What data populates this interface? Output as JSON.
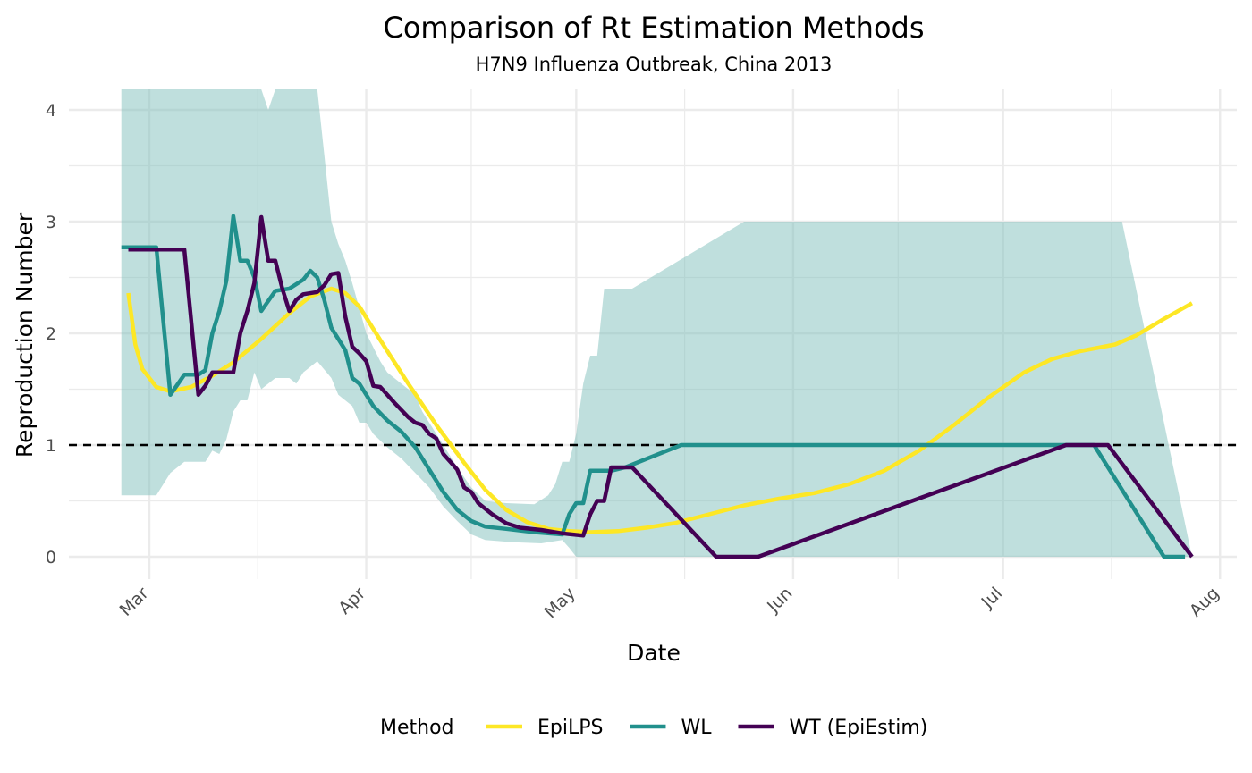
{
  "chart_data": {
    "type": "line",
    "title": "Comparison of Rt Estimation Methods",
    "subtitle": "H7N9 Influenza Outbreak, China 2013",
    "xlabel": "Date",
    "ylabel": "Reproduction Number",
    "x_axis": {
      "type": "date",
      "range": [
        "2013-02-20",
        "2013-08-01"
      ],
      "ticks": [
        {
          "date": "2013-03-01",
          "label": "Mar"
        },
        {
          "date": "2013-04-01",
          "label": "Apr"
        },
        {
          "date": "2013-05-01",
          "label": "May"
        },
        {
          "date": "2013-06-01",
          "label": "Jun"
        },
        {
          "date": "2013-07-01",
          "label": "Jul"
        },
        {
          "date": "2013-08-01",
          "label": "Aug"
        }
      ],
      "tick_label_rotation_deg": -45
    },
    "y_axis": {
      "range": [
        0,
        4
      ],
      "ticks": [
        0,
        1,
        2,
        3,
        4
      ]
    },
    "grid": true,
    "reference_line": {
      "y": 1,
      "style": "dashed",
      "color": "#000000"
    },
    "legend": {
      "position": "bottom",
      "title": "Method"
    },
    "series": [
      {
        "name": "EpiLPS",
        "color": "#FDE725",
        "points": [
          [
            "2013-02-26",
            2.36
          ],
          [
            "2013-02-27",
            1.9
          ],
          [
            "2013-02-28",
            1.68
          ],
          [
            "2013-03-02",
            1.52
          ],
          [
            "2013-03-04",
            1.48
          ],
          [
            "2013-03-07",
            1.52
          ],
          [
            "2013-03-10",
            1.62
          ],
          [
            "2013-03-13",
            1.74
          ],
          [
            "2013-03-17",
            1.95
          ],
          [
            "2013-03-21",
            2.18
          ],
          [
            "2013-03-24",
            2.33
          ],
          [
            "2013-03-27",
            2.4
          ],
          [
            "2013-03-29",
            2.36
          ],
          [
            "2013-03-31",
            2.24
          ],
          [
            "2013-04-03",
            1.94
          ],
          [
            "2013-04-07",
            1.55
          ],
          [
            "2013-04-11",
            1.18
          ],
          [
            "2013-04-15",
            0.84
          ],
          [
            "2013-04-18",
            0.6
          ],
          [
            "2013-04-21",
            0.42
          ],
          [
            "2013-04-24",
            0.31
          ],
          [
            "2013-04-27",
            0.25
          ],
          [
            "2013-04-30",
            0.23
          ],
          [
            "2013-05-03",
            0.22
          ],
          [
            "2013-05-07",
            0.23
          ],
          [
            "2013-05-11",
            0.26
          ],
          [
            "2013-05-15",
            0.3
          ],
          [
            "2013-05-20",
            0.38
          ],
          [
            "2013-05-25",
            0.46
          ],
          [
            "2013-05-30",
            0.52
          ],
          [
            "2013-06-04",
            0.57
          ],
          [
            "2013-06-09",
            0.65
          ],
          [
            "2013-06-14",
            0.77
          ],
          [
            "2013-06-19",
            0.95
          ],
          [
            "2013-06-24",
            1.18
          ],
          [
            "2013-06-29",
            1.43
          ],
          [
            "2013-07-04",
            1.65
          ],
          [
            "2013-07-08",
            1.77
          ],
          [
            "2013-07-12",
            1.84
          ],
          [
            "2013-07-17",
            1.9
          ],
          [
            "2013-07-20",
            1.98
          ],
          [
            "2013-07-24",
            2.13
          ],
          [
            "2013-07-28",
            2.27
          ]
        ]
      },
      {
        "name": "WL",
        "color": "#21908C",
        "points": [
          [
            "2013-02-25",
            2.77
          ],
          [
            "2013-02-27",
            2.77
          ],
          [
            "2013-03-02",
            2.77
          ],
          [
            "2013-03-03",
            2.1
          ],
          [
            "2013-03-04",
            1.45
          ],
          [
            "2013-03-06",
            1.63
          ],
          [
            "2013-03-08",
            1.63
          ],
          [
            "2013-03-09",
            1.67
          ],
          [
            "2013-03-10",
            2.0
          ],
          [
            "2013-03-11",
            2.2
          ],
          [
            "2013-03-12",
            2.47
          ],
          [
            "2013-03-13",
            3.05
          ],
          [
            "2013-03-14",
            2.65
          ],
          [
            "2013-03-15",
            2.65
          ],
          [
            "2013-03-16",
            2.5
          ],
          [
            "2013-03-17",
            2.2
          ],
          [
            "2013-03-19",
            2.38
          ],
          [
            "2013-03-21",
            2.4
          ],
          [
            "2013-03-23",
            2.48
          ],
          [
            "2013-03-24",
            2.56
          ],
          [
            "2013-03-25",
            2.5
          ],
          [
            "2013-03-26",
            2.3
          ],
          [
            "2013-03-27",
            2.05
          ],
          [
            "2013-03-28",
            1.95
          ],
          [
            "2013-03-29",
            1.85
          ],
          [
            "2013-03-30",
            1.6
          ],
          [
            "2013-03-31",
            1.55
          ],
          [
            "2013-04-01",
            1.45
          ],
          [
            "2013-04-02",
            1.35
          ],
          [
            "2013-04-04",
            1.22
          ],
          [
            "2013-04-06",
            1.12
          ],
          [
            "2013-04-08",
            0.98
          ],
          [
            "2013-04-10",
            0.78
          ],
          [
            "2013-04-12",
            0.58
          ],
          [
            "2013-04-14",
            0.42
          ],
          [
            "2013-04-16",
            0.32
          ],
          [
            "2013-04-18",
            0.27
          ],
          [
            "2013-04-21",
            0.25
          ],
          [
            "2013-04-25",
            0.22
          ],
          [
            "2013-04-29",
            0.2
          ],
          [
            "2013-04-30",
            0.38
          ],
          [
            "2013-05-01",
            0.48
          ],
          [
            "2013-05-02",
            0.48
          ],
          [
            "2013-05-03",
            0.77
          ],
          [
            "2013-05-06",
            0.77
          ],
          [
            "2013-05-08",
            0.8
          ],
          [
            "2013-05-16",
            1.0
          ],
          [
            "2013-07-14",
            1.0
          ],
          [
            "2013-07-24",
            0.0
          ],
          [
            "2013-07-27",
            0.0
          ]
        ]
      },
      {
        "name": "WT (EpiEstim)",
        "color": "#440154",
        "points": [
          [
            "2013-02-26",
            2.75
          ],
          [
            "2013-03-01",
            2.75
          ],
          [
            "2013-03-06",
            2.75
          ],
          [
            "2013-03-08",
            1.45
          ],
          [
            "2013-03-09",
            1.53
          ],
          [
            "2013-03-10",
            1.65
          ],
          [
            "2013-03-13",
            1.65
          ],
          [
            "2013-03-14",
            2.0
          ],
          [
            "2013-03-15",
            2.2
          ],
          [
            "2013-03-16",
            2.45
          ],
          [
            "2013-03-17",
            3.04
          ],
          [
            "2013-03-18",
            2.65
          ],
          [
            "2013-03-19",
            2.65
          ],
          [
            "2013-03-20",
            2.4
          ],
          [
            "2013-03-21",
            2.2
          ],
          [
            "2013-03-22",
            2.3
          ],
          [
            "2013-03-23",
            2.35
          ],
          [
            "2013-03-25",
            2.37
          ],
          [
            "2013-03-26",
            2.43
          ],
          [
            "2013-03-27",
            2.53
          ],
          [
            "2013-03-28",
            2.54
          ],
          [
            "2013-03-29",
            2.15
          ],
          [
            "2013-03-30",
            1.88
          ],
          [
            "2013-03-31",
            1.82
          ],
          [
            "2013-04-01",
            1.75
          ],
          [
            "2013-04-02",
            1.53
          ],
          [
            "2013-04-03",
            1.52
          ],
          [
            "2013-04-05",
            1.38
          ],
          [
            "2013-04-07",
            1.25
          ],
          [
            "2013-04-08",
            1.2
          ],
          [
            "2013-04-09",
            1.18
          ],
          [
            "2013-04-10",
            1.1
          ],
          [
            "2013-04-11",
            1.06
          ],
          [
            "2013-04-12",
            0.92
          ],
          [
            "2013-04-14",
            0.78
          ],
          [
            "2013-04-15",
            0.62
          ],
          [
            "2013-04-16",
            0.58
          ],
          [
            "2013-04-17",
            0.48
          ],
          [
            "2013-04-19",
            0.38
          ],
          [
            "2013-04-21",
            0.3
          ],
          [
            "2013-04-23",
            0.26
          ],
          [
            "2013-04-26",
            0.24
          ],
          [
            "2013-04-29",
            0.21
          ],
          [
            "2013-05-02",
            0.19
          ],
          [
            "2013-05-03",
            0.38
          ],
          [
            "2013-05-04",
            0.5
          ],
          [
            "2013-05-05",
            0.5
          ],
          [
            "2013-05-06",
            0.8
          ],
          [
            "2013-05-09",
            0.8
          ],
          [
            "2013-05-21",
            0.0
          ],
          [
            "2013-05-27",
            0.0
          ],
          [
            "2013-07-10",
            1.0
          ],
          [
            "2013-07-16",
            1.0
          ],
          [
            "2013-07-28",
            0.0
          ]
        ]
      }
    ],
    "ribbon": {
      "series": "WL",
      "fill_color": "#7FBFBC",
      "opacity": 0.5,
      "upper": [
        [
          "2013-02-25",
          4.3
        ],
        [
          "2013-03-17",
          4.3
        ],
        [
          "2013-03-18",
          4.0
        ],
        [
          "2013-03-19",
          4.3
        ],
        [
          "2013-03-25",
          4.3
        ],
        [
          "2013-03-26",
          3.6
        ],
        [
          "2013-03-27",
          3.0
        ],
        [
          "2013-03-28",
          2.8
        ],
        [
          "2013-03-29",
          2.65
        ],
        [
          "2013-03-30",
          2.45
        ],
        [
          "2013-04-01",
          2.0
        ],
        [
          "2013-04-03",
          1.75
        ],
        [
          "2013-04-04",
          1.65
        ],
        [
          "2013-04-06",
          1.55
        ],
        [
          "2013-04-08",
          1.45
        ],
        [
          "2013-04-09",
          1.3
        ],
        [
          "2013-04-10",
          1.2
        ],
        [
          "2013-04-12",
          1.0
        ],
        [
          "2013-04-14",
          0.8
        ],
        [
          "2013-04-16",
          0.62
        ],
        [
          "2013-04-18",
          0.5
        ],
        [
          "2013-04-21",
          0.48
        ],
        [
          "2013-04-25",
          0.47
        ],
        [
          "2013-04-27",
          0.55
        ],
        [
          "2013-04-28",
          0.65
        ],
        [
          "2013-04-29",
          0.85
        ],
        [
          "2013-04-30",
          0.85
        ],
        [
          "2013-05-01",
          1.1
        ],
        [
          "2013-05-02",
          1.55
        ],
        [
          "2013-05-03",
          1.8
        ],
        [
          "2013-05-04",
          1.8
        ],
        [
          "2013-05-05",
          2.4
        ],
        [
          "2013-05-09",
          2.4
        ],
        [
          "2013-05-25",
          3.0
        ],
        [
          "2013-07-18",
          3.0
        ],
        [
          "2013-07-28",
          0.0
        ]
      ],
      "lower": [
        [
          "2013-02-25",
          0.55
        ],
        [
          "2013-03-02",
          0.55
        ],
        [
          "2013-03-04",
          0.75
        ],
        [
          "2013-03-06",
          0.85
        ],
        [
          "2013-03-09",
          0.85
        ],
        [
          "2013-03-10",
          0.95
        ],
        [
          "2013-03-11",
          0.92
        ],
        [
          "2013-03-12",
          1.05
        ],
        [
          "2013-03-13",
          1.3
        ],
        [
          "2013-03-14",
          1.4
        ],
        [
          "2013-03-15",
          1.4
        ],
        [
          "2013-03-16",
          1.65
        ],
        [
          "2013-03-17",
          1.5
        ],
        [
          "2013-03-19",
          1.6
        ],
        [
          "2013-03-21",
          1.6
        ],
        [
          "2013-03-22",
          1.55
        ],
        [
          "2013-03-23",
          1.65
        ],
        [
          "2013-03-25",
          1.75
        ],
        [
          "2013-03-27",
          1.6
        ],
        [
          "2013-03-28",
          1.45
        ],
        [
          "2013-03-30",
          1.35
        ],
        [
          "2013-03-31",
          1.2
        ],
        [
          "2013-04-01",
          1.2
        ],
        [
          "2013-04-02",
          1.1
        ],
        [
          "2013-04-04",
          0.98
        ],
        [
          "2013-04-06",
          0.88
        ],
        [
          "2013-04-08",
          0.75
        ],
        [
          "2013-04-10",
          0.62
        ],
        [
          "2013-04-12",
          0.45
        ],
        [
          "2013-04-14",
          0.32
        ],
        [
          "2013-04-16",
          0.2
        ],
        [
          "2013-04-18",
          0.15
        ],
        [
          "2013-04-22",
          0.13
        ],
        [
          "2013-04-26",
          0.12
        ],
        [
          "2013-04-29",
          0.15
        ],
        [
          "2013-04-30",
          0.08
        ],
        [
          "2013-05-01",
          0.0
        ],
        [
          "2013-07-28",
          0.0
        ]
      ]
    }
  }
}
